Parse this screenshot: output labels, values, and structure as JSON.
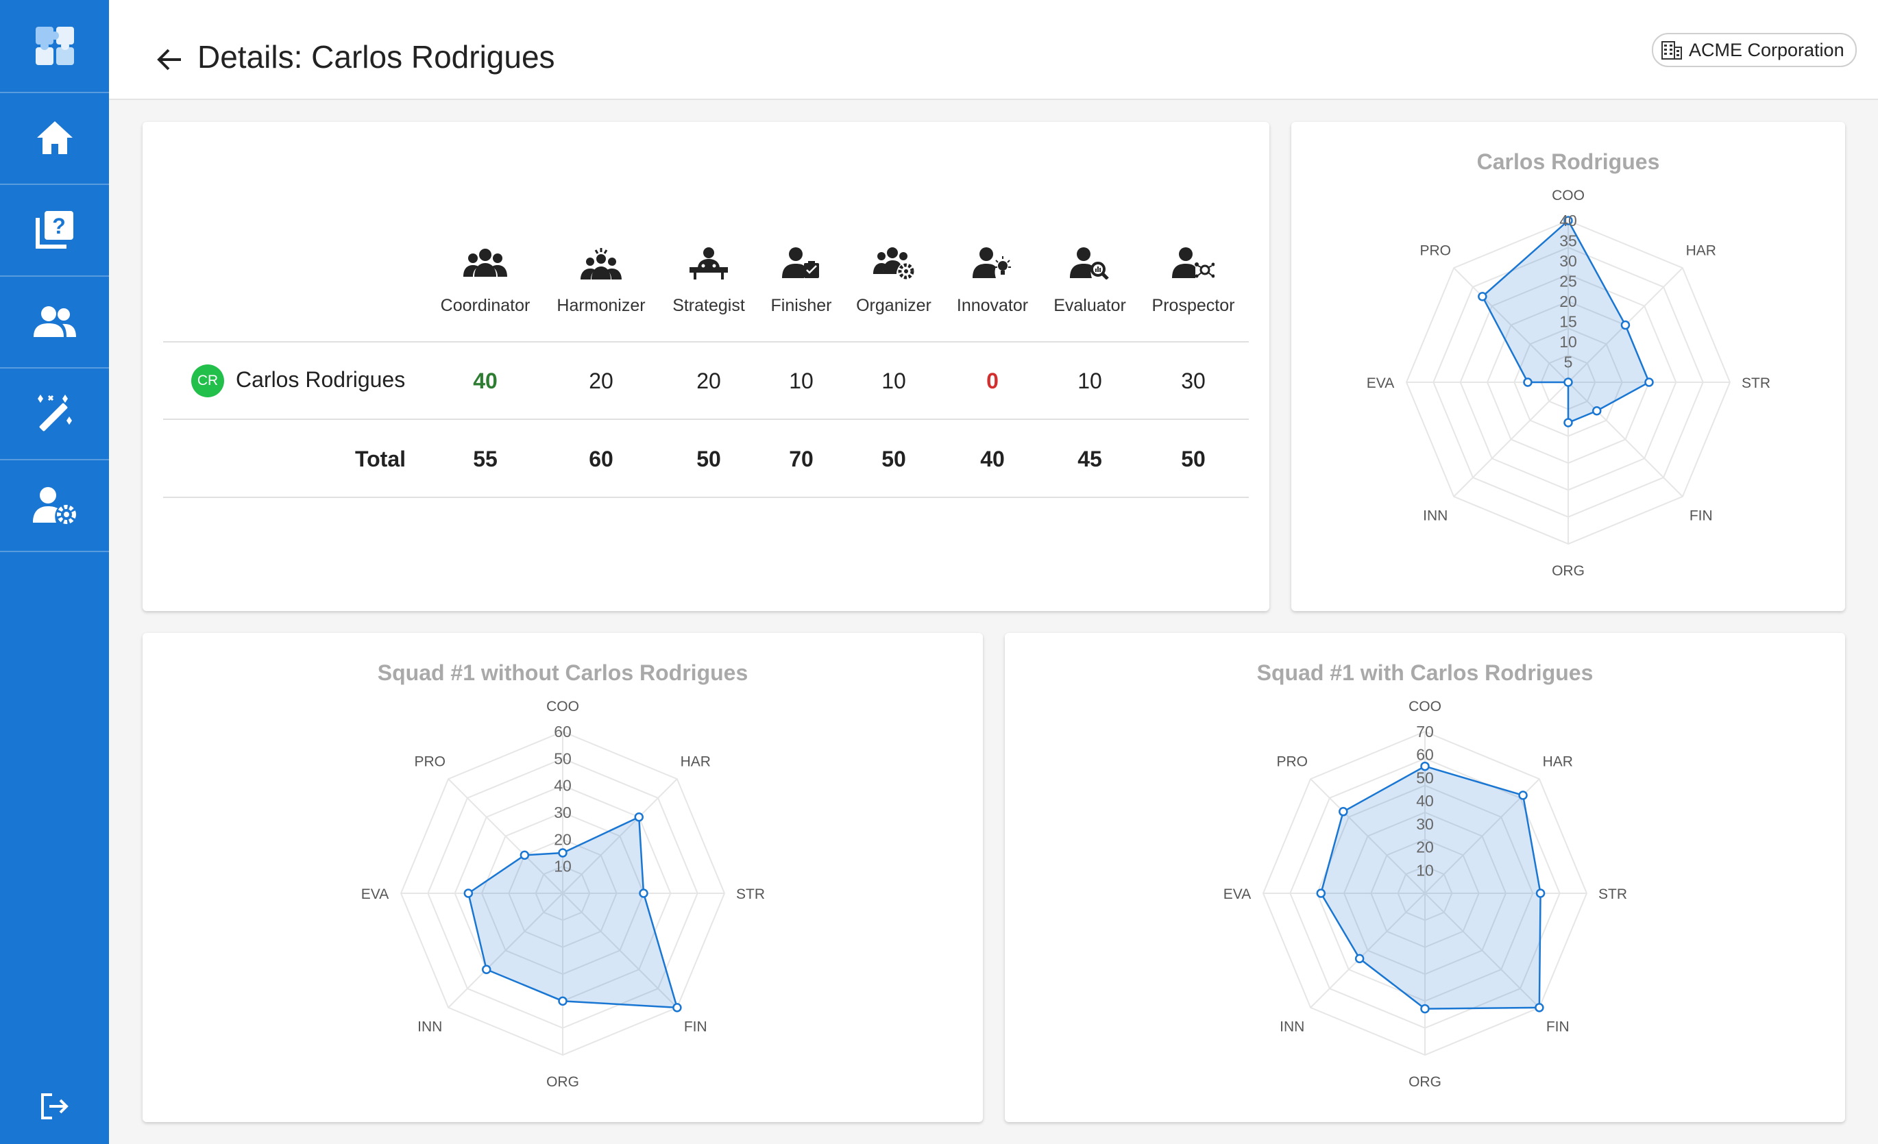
{
  "page": {
    "title": "Details: Carlos Rodrigues"
  },
  "org": {
    "name": "ACME Corporation"
  },
  "sidebar": {
    "items": [
      {
        "name": "app-logo",
        "icon": "puzzle-icon"
      },
      {
        "name": "home",
        "icon": "home-icon"
      },
      {
        "name": "questionnaires",
        "icon": "quiz-icon"
      },
      {
        "name": "people",
        "icon": "group-icon"
      },
      {
        "name": "magic",
        "icon": "magic-wand-icon"
      },
      {
        "name": "user-settings",
        "icon": "user-gear-icon"
      }
    ],
    "logout_icon": "logout-icon"
  },
  "table": {
    "columns": [
      {
        "label": "Coordinator",
        "icon": "coordinator-icon"
      },
      {
        "label": "Harmonizer",
        "icon": "harmonizer-icon"
      },
      {
        "label": "Strategist",
        "icon": "strategist-icon"
      },
      {
        "label": "Finisher",
        "icon": "finisher-icon"
      },
      {
        "label": "Organizer",
        "icon": "organizer-icon"
      },
      {
        "label": "Innovator",
        "icon": "innovator-icon"
      },
      {
        "label": "Evaluator",
        "icon": "evaluator-icon"
      },
      {
        "label": "Prospector",
        "icon": "prospector-icon"
      }
    ],
    "person": {
      "initials": "CR",
      "name": "Carlos Rodrigues",
      "values": [
        "40",
        "20",
        "20",
        "10",
        "10",
        "0",
        "10",
        "30"
      ]
    },
    "total": {
      "label": "Total",
      "values": [
        "55",
        "60",
        "50",
        "70",
        "50",
        "40",
        "45",
        "50"
      ]
    },
    "colors": {
      "max": "#2e7d32",
      "min": "#d32f2f",
      "avatar": "#22c04b"
    }
  },
  "chart_data": [
    {
      "type": "radar",
      "title": "Carlos Rodrigues",
      "axes": [
        "COO",
        "HAR",
        "STR",
        "FIN",
        "ORG",
        "INN",
        "EVA",
        "PRO"
      ],
      "ticks": [
        5,
        10,
        15,
        20,
        25,
        30,
        35,
        40
      ],
      "rmax": 40,
      "values": [
        40,
        20,
        20,
        10,
        10,
        0,
        10,
        30
      ]
    },
    {
      "type": "radar",
      "title": "Squad #1 without Carlos Rodrigues",
      "axes": [
        "COO",
        "HAR",
        "STR",
        "FIN",
        "ORG",
        "INN",
        "EVA",
        "PRO"
      ],
      "ticks": [
        10,
        20,
        30,
        40,
        50,
        60
      ],
      "rmax": 60,
      "values": [
        15,
        40,
        30,
        60,
        40,
        40,
        35,
        20
      ]
    },
    {
      "type": "radar",
      "title": "Squad #1 with Carlos Rodrigues",
      "axes": [
        "COO",
        "HAR",
        "STR",
        "FIN",
        "ORG",
        "INN",
        "EVA",
        "PRO"
      ],
      "ticks": [
        10,
        20,
        30,
        40,
        50,
        60,
        70
      ],
      "rmax": 70,
      "values": [
        55,
        60,
        50,
        70,
        50,
        40,
        45,
        50
      ]
    }
  ],
  "colors": {
    "sidebar": "#1976d2",
    "series": "#1976d2",
    "fill": "rgba(25,118,210,0.18)"
  }
}
